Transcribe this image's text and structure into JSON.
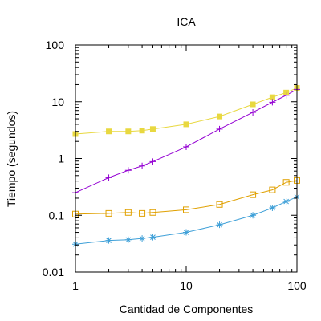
{
  "chart_data": {
    "type": "line",
    "title": "ICA",
    "xlabel": "Cantidad de Componentes",
    "ylabel": "Tiempo (segundos)",
    "xscale": "log",
    "yscale": "log",
    "xlim": [
      1,
      100
    ],
    "ylim": [
      0.01,
      100
    ],
    "x_ticks": [
      1,
      10,
      100
    ],
    "x_tick_labels": [
      "1",
      "10",
      "100"
    ],
    "y_ticks": [
      0.01,
      0.1,
      1,
      10,
      100
    ],
    "y_tick_labels": [
      "0.01",
      "0.1",
      "1",
      "10",
      "100"
    ],
    "grid": false,
    "legend": "none",
    "series": [
      {
        "color": "#e8d840",
        "marker": "filled-square",
        "x": [
          1,
          2,
          3,
          4,
          5,
          10,
          20,
          40,
          60,
          80,
          100
        ],
        "y": [
          2.7,
          3.0,
          3.0,
          3.1,
          3.3,
          4.0,
          5.5,
          9.0,
          12.0,
          14.5,
          17.5
        ]
      },
      {
        "color": "#9400d3",
        "marker": "plus",
        "x": [
          1,
          2,
          3,
          4,
          5,
          10,
          20,
          40,
          60,
          80,
          100
        ],
        "y": [
          0.25,
          0.46,
          0.62,
          0.74,
          0.88,
          1.6,
          3.3,
          6.5,
          9.8,
          13.0,
          16.5
        ]
      },
      {
        "color": "#e0a000",
        "marker": "open-square",
        "x": [
          1,
          2,
          3,
          4,
          5,
          10,
          20,
          40,
          60,
          80,
          100
        ],
        "y": [
          0.105,
          0.108,
          0.112,
          0.108,
          0.112,
          0.125,
          0.155,
          0.23,
          0.28,
          0.38,
          0.41
        ]
      },
      {
        "color": "#3fa0d8",
        "marker": "star",
        "x": [
          1,
          2,
          3,
          4,
          5,
          10,
          20,
          40,
          60,
          80,
          100
        ],
        "y": [
          0.031,
          0.036,
          0.037,
          0.039,
          0.041,
          0.05,
          0.068,
          0.1,
          0.135,
          0.175,
          0.21
        ]
      }
    ]
  }
}
